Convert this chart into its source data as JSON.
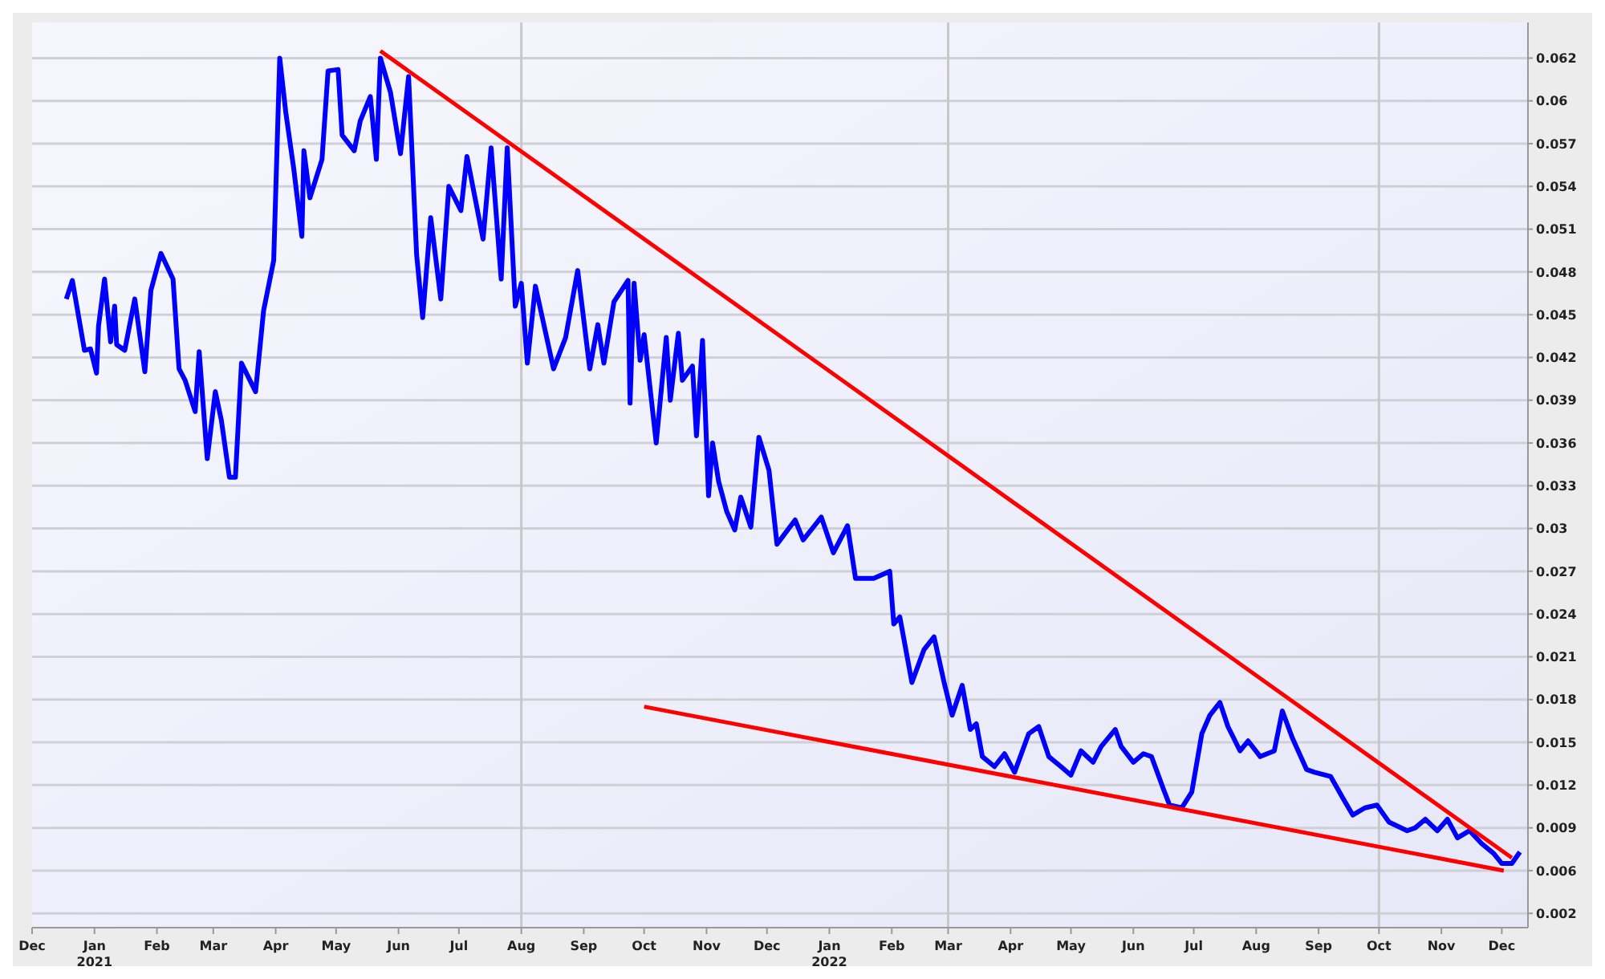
{
  "chart_data": {
    "type": "line",
    "grid": "y",
    "legend": false,
    "marker": "none",
    "line_style": "solid",
    "xlim": [
      "2020-12-01",
      "2022-12-14"
    ],
    "xticks": [
      {
        "value": "2020-12-01",
        "label": "Dec"
      },
      {
        "value": "2021-01-01",
        "label": "Jan\n2021"
      },
      {
        "value": "2021-02-01",
        "label": "Feb"
      },
      {
        "value": "2021-03-01",
        "label": "Mar"
      },
      {
        "value": "2021-04-01",
        "label": "Apr"
      },
      {
        "value": "2021-05-01",
        "label": "May"
      },
      {
        "value": "2021-06-01",
        "label": "Jun"
      },
      {
        "value": "2021-07-01",
        "label": "Jul"
      },
      {
        "value": "2021-08-01",
        "label": "Aug"
      },
      {
        "value": "2021-09-01",
        "label": "Sep"
      },
      {
        "value": "2021-10-01",
        "label": "Oct"
      },
      {
        "value": "2021-11-01",
        "label": "Nov"
      },
      {
        "value": "2021-12-01",
        "label": "Dec"
      },
      {
        "value": "2022-01-01",
        "label": "Jan\n2022"
      },
      {
        "value": "2022-02-01",
        "label": "Feb"
      },
      {
        "value": "2022-03-01",
        "label": "Mar"
      },
      {
        "value": "2022-04-01",
        "label": "Apr"
      },
      {
        "value": "2022-05-01",
        "label": "May"
      },
      {
        "value": "2022-06-01",
        "label": "Jun"
      },
      {
        "value": "2022-07-01",
        "label": "Jul"
      },
      {
        "value": "2022-08-01",
        "label": "Aug"
      },
      {
        "value": "2022-09-01",
        "label": "Sep"
      },
      {
        "value": "2022-10-01",
        "label": "Oct"
      },
      {
        "value": "2022-11-01",
        "label": "Nov"
      },
      {
        "value": "2022-12-01",
        "label": "Dec"
      }
    ],
    "ylim": [
      0.0015,
      0.065
    ],
    "yticks": [
      {
        "value": 0.0025,
        "label": "0.002"
      },
      {
        "value": 0.0055,
        "label": "0.006"
      },
      {
        "value": 0.0085,
        "label": "0.009"
      },
      {
        "value": 0.0115,
        "label": "0.012"
      },
      {
        "value": 0.0145,
        "label": "0.015"
      },
      {
        "value": 0.0175,
        "label": "0.018"
      },
      {
        "value": 0.0205,
        "label": "0.021"
      },
      {
        "value": 0.0235,
        "label": "0.024"
      },
      {
        "value": 0.0265,
        "label": "0.027"
      },
      {
        "value": 0.0295,
        "label": "0.03"
      },
      {
        "value": 0.0325,
        "label": "0.033"
      },
      {
        "value": 0.0355,
        "label": "0.036"
      },
      {
        "value": 0.0385,
        "label": "0.039"
      },
      {
        "value": 0.0415,
        "label": "0.042"
      },
      {
        "value": 0.0445,
        "label": "0.045"
      },
      {
        "value": 0.0475,
        "label": "0.048"
      },
      {
        "value": 0.0505,
        "label": "0.051"
      },
      {
        "value": 0.0535,
        "label": "0.054"
      },
      {
        "value": 0.0565,
        "label": "0.057"
      },
      {
        "value": 0.0595,
        "label": "0.06"
      },
      {
        "value": 0.0625,
        "label": "0.062"
      }
    ],
    "ref_lines": [
      {
        "axis": "x",
        "value": "2021-08-01",
        "color": "#c8c8c8"
      },
      {
        "axis": "x",
        "value": "2022-03-01",
        "color": "#c8c8c8"
      },
      {
        "axis": "x",
        "value": "2022-10-01",
        "color": "#c8c8c8"
      }
    ],
    "series": [
      {
        "color": "#0000ff",
        "x": [
          "2020-12-18",
          "2020-12-21",
          "2020-12-27",
          "2020-12-30",
          "2021-01-02",
          "2021-01-03",
          "2021-01-06",
          "2021-01-09",
          "2021-01-11",
          "2021-01-12",
          "2021-01-16",
          "2021-01-21",
          "2021-01-26",
          "2021-01-29",
          "2021-02-03",
          "2021-02-09",
          "2021-02-12",
          "2021-02-15",
          "2021-02-20",
          "2021-02-22",
          "2021-02-26",
          "2021-03-02",
          "2021-03-05",
          "2021-03-09",
          "2021-03-12",
          "2021-03-15",
          "2021-03-22",
          "2021-03-26",
          "2021-03-31",
          "2021-04-03",
          "2021-04-06",
          "2021-04-10",
          "2021-04-14",
          "2021-04-15",
          "2021-04-18",
          "2021-04-24",
          "2021-04-27",
          "2021-05-02",
          "2021-05-04",
          "2021-05-10",
          "2021-05-13",
          "2021-05-18",
          "2021-05-21",
          "2021-05-23",
          "2021-05-28",
          "2021-06-02",
          "2021-06-06",
          "2021-06-10",
          "2021-06-13",
          "2021-06-17",
          "2021-06-22",
          "2021-06-26",
          "2021-07-02",
          "2021-07-05",
          "2021-07-13",
          "2021-07-17",
          "2021-07-22",
          "2021-07-25",
          "2021-07-29",
          "2021-08-01",
          "2021-08-04",
          "2021-08-08",
          "2021-08-17",
          "2021-08-23",
          "2021-08-29",
          "2021-09-04",
          "2021-09-08",
          "2021-09-11",
          "2021-09-16",
          "2021-09-23",
          "2021-09-24",
          "2021-09-26",
          "2021-09-29",
          "2021-10-01",
          "2021-10-07",
          "2021-10-12",
          "2021-10-14",
          "2021-10-18",
          "2021-10-20",
          "2021-10-25",
          "2021-10-27",
          "2021-10-30",
          "2021-11-02",
          "2021-11-04",
          "2021-11-07",
          "2021-11-11",
          "2021-11-15",
          "2021-11-18",
          "2021-11-23",
          "2021-11-27",
          "2021-12-02",
          "2021-12-06",
          "2021-12-15",
          "2021-12-19",
          "2021-12-28",
          "2022-01-03",
          "2022-01-10",
          "2022-01-14",
          "2022-01-23",
          "2022-01-31",
          "2022-02-02",
          "2022-02-05",
          "2022-02-11",
          "2022-02-17",
          "2022-02-22",
          "2022-02-27",
          "2022-03-03",
          "2022-03-08",
          "2022-03-12",
          "2022-03-15",
          "2022-03-18",
          "2022-03-24",
          "2022-03-29",
          "2022-04-03",
          "2022-04-10",
          "2022-04-15",
          "2022-04-20",
          "2022-04-26",
          "2022-05-01",
          "2022-05-06",
          "2022-05-12",
          "2022-05-16",
          "2022-05-23",
          "2022-05-26",
          "2022-06-01",
          "2022-06-06",
          "2022-06-10",
          "2022-06-16",
          "2022-06-19",
          "2022-06-25",
          "2022-06-30",
          "2022-07-05",
          "2022-07-09",
          "2022-07-14",
          "2022-07-18",
          "2022-07-24",
          "2022-07-28",
          "2022-08-03",
          "2022-08-10",
          "2022-08-14",
          "2022-08-19",
          "2022-08-26",
          "2022-08-30",
          "2022-09-07",
          "2022-09-13",
          "2022-09-18",
          "2022-09-24",
          "2022-09-30",
          "2022-10-06",
          "2022-10-15",
          "2022-10-19",
          "2022-10-24",
          "2022-10-30",
          "2022-11-04",
          "2022-11-09",
          "2022-11-15",
          "2022-11-21",
          "2022-11-27",
          "2022-12-01",
          "2022-12-06",
          "2022-12-10"
        ],
        "values": [
          0.0456,
          0.0469,
          0.042,
          0.0421,
          0.0404,
          0.0437,
          0.047,
          0.0426,
          0.0451,
          0.0424,
          0.042,
          0.0456,
          0.0405,
          0.0462,
          0.0488,
          0.047,
          0.0407,
          0.0399,
          0.0377,
          0.0419,
          0.0344,
          0.0391,
          0.0371,
          0.0331,
          0.0331,
          0.0411,
          0.0391,
          0.0448,
          0.0483,
          0.0625,
          0.0587,
          0.0547,
          0.05,
          0.056,
          0.0527,
          0.0554,
          0.0616,
          0.0617,
          0.0571,
          0.056,
          0.0581,
          0.0598,
          0.0554,
          0.0625,
          0.0601,
          0.0558,
          0.0612,
          0.0487,
          0.0443,
          0.0513,
          0.0456,
          0.0535,
          0.0518,
          0.0556,
          0.0498,
          0.0562,
          0.047,
          0.0562,
          0.0451,
          0.0467,
          0.0411,
          0.0465,
          0.0407,
          0.0429,
          0.0476,
          0.0407,
          0.0438,
          0.0411,
          0.0454,
          0.0469,
          0.0383,
          0.0467,
          0.0413,
          0.0431,
          0.0355,
          0.0429,
          0.0385,
          0.0432,
          0.0399,
          0.0409,
          0.036,
          0.0427,
          0.0318,
          0.0355,
          0.0328,
          0.0307,
          0.0294,
          0.0317,
          0.0296,
          0.0359,
          0.0336,
          0.0284,
          0.0301,
          0.0287,
          0.0303,
          0.0278,
          0.0297,
          0.026,
          0.026,
          0.0265,
          0.0228,
          0.0233,
          0.0187,
          0.021,
          0.0219,
          0.0187,
          0.0164,
          0.0185,
          0.0154,
          0.0158,
          0.0135,
          0.0128,
          0.0137,
          0.0124,
          0.0151,
          0.0156,
          0.0135,
          0.0128,
          0.0122,
          0.0139,
          0.0131,
          0.0142,
          0.0154,
          0.0142,
          0.0131,
          0.0137,
          0.0135,
          0.0112,
          0.0101,
          0.0099,
          0.011,
          0.0151,
          0.0164,
          0.0173,
          0.0156,
          0.0139,
          0.0146,
          0.0135,
          0.0139,
          0.0167,
          0.0148,
          0.0126,
          0.0124,
          0.0121,
          0.0106,
          0.0094,
          0.0099,
          0.0101,
          0.0089,
          0.0083,
          0.0085,
          0.0091,
          0.0083,
          0.0091,
          0.0078,
          0.0083,
          0.0074,
          0.0067,
          0.006,
          0.006,
          0.0068
        ]
      },
      {
        "color": "#ff0000",
        "x": [
          "2021-05-23",
          "2022-12-06"
        ],
        "values": [
          0.063,
          0.0064
        ]
      },
      {
        "color": "#ff0000",
        "x": [
          "2021-10-01",
          "2022-12-02"
        ],
        "values": [
          0.017,
          0.0055
        ]
      }
    ]
  }
}
